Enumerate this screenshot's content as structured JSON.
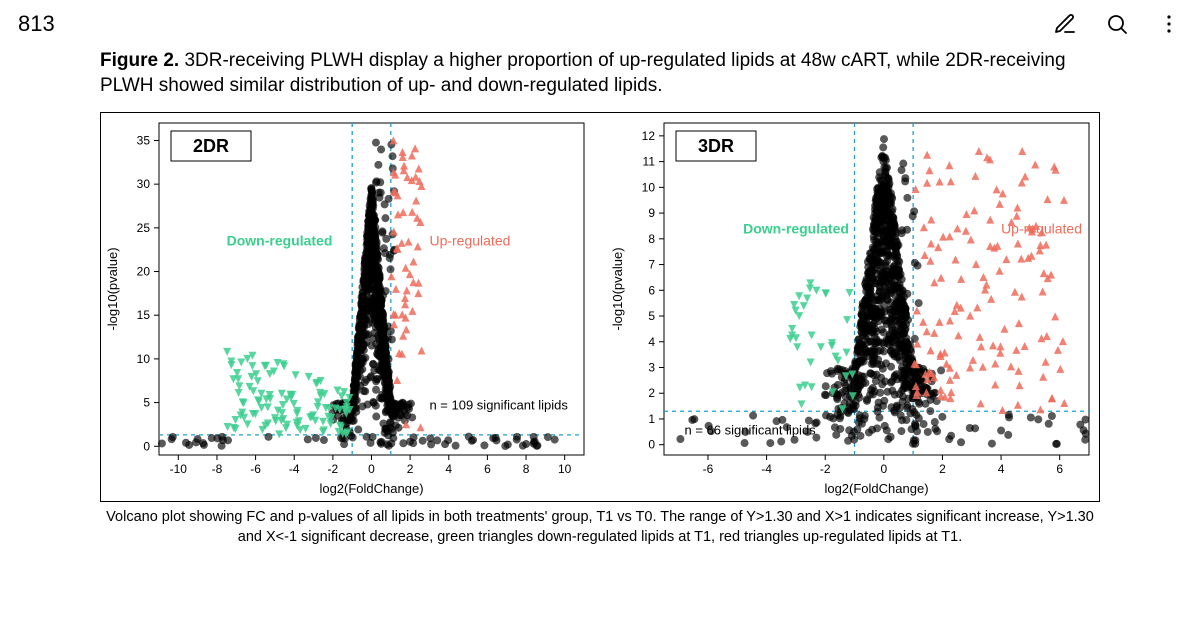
{
  "topbar": {
    "page_number": "813",
    "edit_icon": "edit-icon",
    "search_icon": "search-icon",
    "more_icon": "more-icon"
  },
  "figure": {
    "title_bold": "Figure 2.",
    "title_rest": " 3DR-receiving PLWH display a higher proportion of up-regulated lipids at 48w cART, while 2DR-receiving PLWH showed similar distribution of up- and down-regulated lipids.",
    "caption": "Volcano plot showing FC and p-values of all lipids in both treatments' group, T1 vs T0. The range of Y>1.30 and X>1 indicates significant increase, Y>1.30 and X<-1 significant decrease, green triangles down-regulated lipids at T1, red triangles up-regulated lipids at T1."
  },
  "left_plot": {
    "panel_label": "2DR",
    "down_label": "Down-regulated",
    "up_label": "Up-regulated",
    "xlabel": "log2(FoldChange)",
    "ylabel": "-log10(pvalue)",
    "count_label": "n = 109 significant lipids",
    "xlim": [
      -11,
      11
    ],
    "ylim": [
      -1,
      37
    ],
    "xticks": [
      -10,
      -8,
      -6,
      -4,
      -2,
      0,
      2,
      4,
      6,
      8,
      10
    ],
    "yticks": [
      0,
      5,
      10,
      15,
      20,
      25,
      30,
      35
    ],
    "threshold_x": [
      -1,
      1
    ],
    "threshold_y": 1.3,
    "colors": {
      "axis": "#000000",
      "tick_label": "#000000",
      "grid": "none",
      "threshold_line": "#1f9ed1",
      "black_pt": "#000000",
      "green_pt": "#3bcf8e",
      "red_pt": "#ef6b5a",
      "down_label_color": "#3bcf8e",
      "up_label_color": "#ef6b5a",
      "panel_bg": "#ffffff"
    },
    "marker_size": 4,
    "axis_fontsize": 13,
    "tick_fontsize": 12,
    "inset_fontsize": 18,
    "inset_weight": "700"
  },
  "right_plot": {
    "panel_label": "3DR",
    "down_label": "Down-regulated",
    "up_label": "Up-regulated",
    "xlabel": "log2(FoldChange)",
    "ylabel": "-log10(pvalue)",
    "count_label": "n = 66 significant lipids",
    "xlim": [
      -7.5,
      7
    ],
    "ylim": [
      -0.4,
      12.5
    ],
    "xticks": [
      -6,
      -4,
      -2,
      0,
      2,
      4,
      6
    ],
    "yticks": [
      0,
      1,
      2,
      3,
      4,
      5,
      6,
      7,
      8,
      9,
      10,
      11,
      12
    ],
    "threshold_x": [
      -1,
      1
    ],
    "threshold_y": 1.3,
    "colors": {
      "axis": "#000000",
      "tick_label": "#000000",
      "grid": "none",
      "threshold_line": "#1f9ed1",
      "black_pt": "#000000",
      "green_pt": "#3bcf8e",
      "red_pt": "#ef6b5a",
      "down_label_color": "#3bcf8e",
      "up_label_color": "#ef6b5a",
      "panel_bg": "#ffffff"
    },
    "marker_size": 4,
    "axis_fontsize": 13,
    "tick_fontsize": 12,
    "inset_fontsize": 18,
    "inset_weight": "700"
  }
}
